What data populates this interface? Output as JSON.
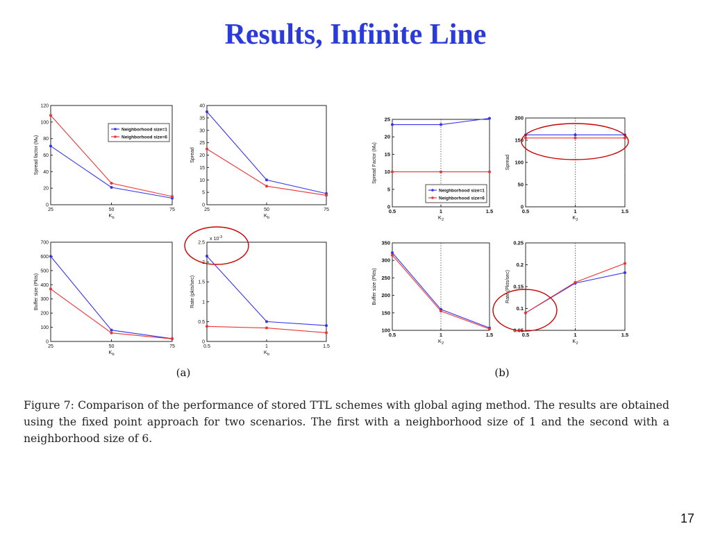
{
  "slide": {
    "title": "Results, Infinite Line",
    "caption": "Figure 7: Comparison of the performance of stored TTL schemes with global aging method. The results are obtained using the fixed point approach for two scenarios. The first with a neighborhood size of 1 and the second with a neighborhood size of 6.",
    "page_number": "17",
    "group_labels": [
      "(a)",
      "(b)"
    ]
  },
  "colors": {
    "series1": "#3333ee",
    "series2": "#ee3333",
    "annotation": "#cc0000",
    "title": "#2b3bd8"
  },
  "chart_data": [
    {
      "type": "line",
      "panel": "a1",
      "xlabel": "K_b",
      "ylabel": "Spread factor (M_a)",
      "x": [
        25,
        50,
        75
      ],
      "xticks": [
        25,
        50,
        75
      ],
      "xlim": [
        25,
        75
      ],
      "ylim": [
        0,
        120
      ],
      "yticks": [
        0,
        20,
        40,
        60,
        80,
        100,
        120
      ],
      "series": [
        {
          "name": "Neighborhood size=1",
          "values": [
            71,
            21,
            8
          ]
        },
        {
          "name": "Neighborhood size=6",
          "values": [
            108,
            26,
            10
          ]
        }
      ],
      "legend": "upper-right",
      "grid": false
    },
    {
      "type": "line",
      "panel": "a2",
      "xlabel": "K_b",
      "ylabel": "Spread",
      "x": [
        25,
        50,
        75
      ],
      "xticks": [
        25,
        50,
        75
      ],
      "xlim": [
        25,
        75
      ],
      "ylim": [
        0,
        40
      ],
      "yticks": [
        0,
        5,
        10,
        15,
        20,
        25,
        30,
        35,
        40
      ],
      "series": [
        {
          "name": "Neighborhood size=1",
          "values": [
            37.5,
            10,
            4.5
          ]
        },
        {
          "name": "Neighborhood size=6",
          "values": [
            22.5,
            7.5,
            3.8
          ]
        }
      ],
      "legend": "none",
      "grid": false
    },
    {
      "type": "line",
      "panel": "a3",
      "xlabel": "K_b",
      "ylabel": "Buffer size (Pkts)",
      "x": [
        25,
        50,
        75
      ],
      "xticks": [
        25,
        50,
        75
      ],
      "xlim": [
        25,
        75
      ],
      "ylim": [
        0,
        700
      ],
      "yticks": [
        0,
        100,
        200,
        300,
        400,
        500,
        600,
        700
      ],
      "series": [
        {
          "name": "Neighborhood size=1",
          "values": [
            600,
            80,
            20
          ]
        },
        {
          "name": "Neighborhood size=6",
          "values": [
            370,
            60,
            18
          ]
        }
      ],
      "legend": "none",
      "grid": false
    },
    {
      "type": "line",
      "panel": "a4",
      "xlabel": "K_b",
      "ylabel": "Rate (pkts/sec)",
      "multiplier": "x 10^-3",
      "x": [
        0.5,
        1,
        1.5
      ],
      "xticks": [
        0.5,
        1,
        1.5
      ],
      "xlim": [
        0.5,
        1.5
      ],
      "ylim": [
        0,
        2.5
      ],
      "yticks": [
        0,
        0.5,
        1,
        1.5,
        2,
        2.5
      ],
      "series": [
        {
          "name": "Neighborhood size=1",
          "values": [
            2.15,
            0.5,
            0.4
          ]
        },
        {
          "name": "Neighborhood size=6",
          "values": [
            0.38,
            0.34,
            0.22
          ]
        }
      ],
      "legend": "none",
      "grid": false
    },
    {
      "type": "line",
      "panel": "b1",
      "xlabel": "K_2",
      "ylabel": "Spread Factor (M_a)",
      "x": [
        0.5,
        1,
        1.5
      ],
      "xticks": [
        0.5,
        1,
        1.5
      ],
      "xlim": [
        0.5,
        1.5
      ],
      "ylim": [
        0,
        25
      ],
      "yticks": [
        0,
        5,
        10,
        15,
        20,
        25
      ],
      "series": [
        {
          "name": "Neighborhood size=1",
          "values": [
            23.5,
            23.5,
            25.3
          ]
        },
        {
          "name": "Neighborhood size=6",
          "values": [
            10,
            10,
            10
          ]
        }
      ],
      "legend": "lower-right",
      "grid": "x-dotted"
    },
    {
      "type": "line",
      "panel": "b2",
      "xlabel": "K_2",
      "ylabel": "Spread",
      "x": [
        0.5,
        1,
        1.5
      ],
      "xticks": [
        0.5,
        1,
        1.5
      ],
      "xlim": [
        0.5,
        1.5
      ],
      "ylim": [
        0,
        200
      ],
      "yticks": [
        0,
        50,
        100,
        150,
        200
      ],
      "series": [
        {
          "name": "Neighborhood size=1",
          "values": [
            162,
            162,
            162
          ]
        },
        {
          "name": "Neighborhood size=6",
          "values": [
            155,
            155,
            155
          ]
        }
      ],
      "legend": "none",
      "grid": "x-dotted"
    },
    {
      "type": "line",
      "panel": "b3",
      "xlabel": "K_2",
      "ylabel": "Buffer size (Pkts)",
      "x": [
        0.5,
        1,
        1.5
      ],
      "xticks": [
        0.5,
        1,
        1.5
      ],
      "xlim": [
        0.5,
        1.5
      ],
      "ylim": [
        100,
        350
      ],
      "yticks": [
        100,
        150,
        200,
        250,
        300,
        350
      ],
      "series": [
        {
          "name": "Neighborhood size=1",
          "values": [
            322,
            160,
            107
          ]
        },
        {
          "name": "Neighborhood size=6",
          "values": [
            315,
            155,
            104
          ]
        }
      ],
      "legend": "none",
      "grid": "x-dotted"
    },
    {
      "type": "line",
      "panel": "b4",
      "xlabel": "K_2",
      "ylabel": "Rate (Pkts/sec)",
      "x": [
        0.5,
        1,
        1.5
      ],
      "xticks": [
        0.5,
        1,
        1.5
      ],
      "xlim": [
        0.5,
        1.5
      ],
      "ylim": [
        0.05,
        0.25
      ],
      "yticks": [
        0.05,
        0.1,
        0.15,
        0.2,
        0.25
      ],
      "series": [
        {
          "name": "Neighborhood size=1",
          "values": [
            0.09,
            0.158,
            0.182
          ]
        },
        {
          "name": "Neighborhood size=6",
          "values": [
            0.09,
            0.16,
            0.203
          ]
        }
      ],
      "legend": "none",
      "grid": "x-dotted"
    }
  ]
}
